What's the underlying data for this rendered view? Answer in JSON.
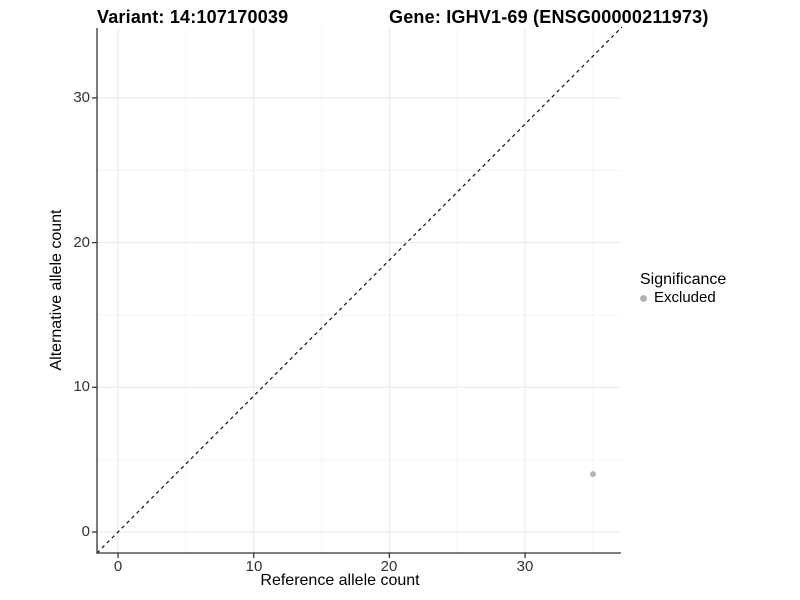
{
  "header": {
    "variant_title": "Variant: 14:107170039",
    "gene_title": "Gene: IGHV1-69 (ENSG00000211973)"
  },
  "chart_data": {
    "type": "scatter",
    "title": "Variant: 14:107170039 — Gene: IGHV1-69 (ENSG00000211973)",
    "xlabel": "Reference allele count",
    "ylabel": "Alternative allele count",
    "x_ticks": [
      0,
      10,
      20,
      30
    ],
    "y_ticks": [
      0,
      10,
      20,
      30
    ],
    "x_tick_labels": [
      "0",
      "10",
      "20",
      "30"
    ],
    "y_tick_labels": [
      "0",
      "10",
      "20",
      "30"
    ],
    "x_minor_ticks": [
      5,
      15,
      25,
      35
    ],
    "y_minor_ticks": [
      5,
      15,
      25
    ],
    "xlim": [
      -1.6,
      37.1
    ],
    "ylim": [
      -1.5,
      34.9
    ],
    "grid": "major and minor horizontal+vertical, light gray, white panel background",
    "reference_line": {
      "type": "identity",
      "slope": 1,
      "intercept": 0,
      "style": "dashed",
      "color": "#111111"
    },
    "points": [
      {
        "x": 35,
        "y": 4,
        "significance": "Excluded"
      }
    ],
    "legend": {
      "title": "Significance",
      "position": "right",
      "items": [
        {
          "label": "Excluded",
          "marker": "circle",
          "color": "#b3b3b3"
        }
      ]
    }
  },
  "colors": {
    "background": "#ffffff",
    "grid_major": "#e8e8e8",
    "grid_minor": "#f4f4f4",
    "axis": "#333333",
    "refline": "#111111",
    "point": "#b3b3b3",
    "text": "#000000"
  }
}
